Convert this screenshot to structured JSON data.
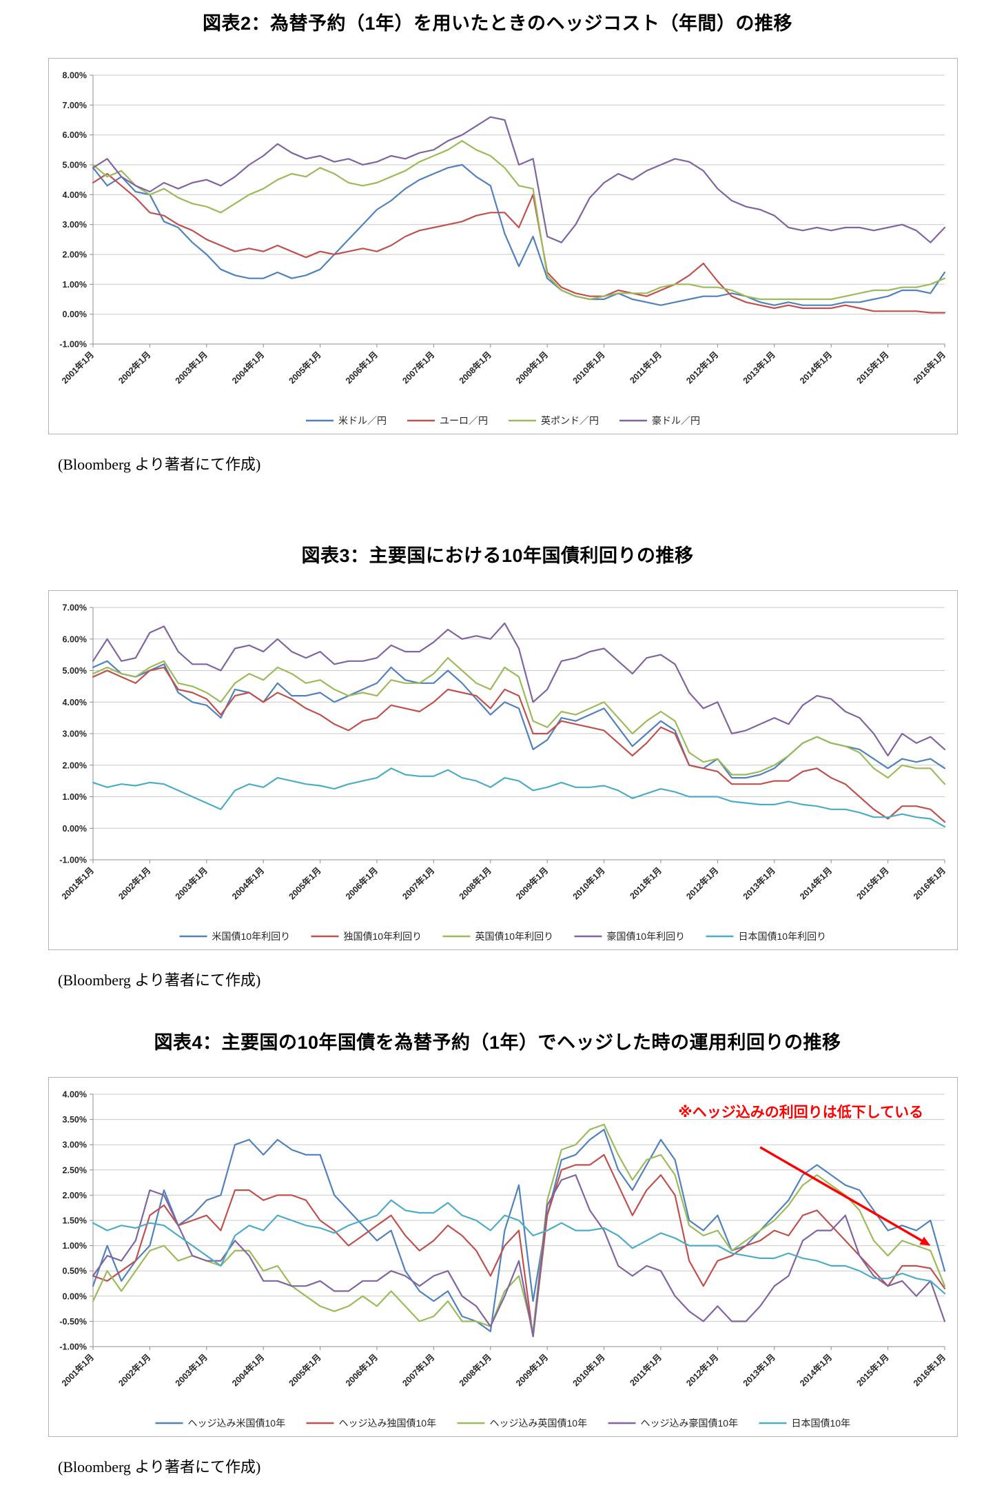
{
  "source_note": "(Bloomberg より著者にて作成)",
  "chart_data": [
    {
      "type": "line",
      "title": "図表2：為替予約（1年）を用いたときのヘッジコスト（年間）の推移",
      "x_labels": [
        "2001年1月",
        "2002年1月",
        "2003年1月",
        "2004年1月",
        "2005年1月",
        "2006年1月",
        "2007年1月",
        "2008年1月",
        "2009年1月",
        "2010年1月",
        "2011年1月",
        "2012年1月",
        "2013年1月",
        "2014年1月",
        "2015年1月",
        "2016年1月"
      ],
      "points_per_label": 4,
      "x_tick_rotation": -45,
      "ylim": [
        -1.0,
        8.0
      ],
      "ytick_step": 1.0,
      "grid": true,
      "legend_position": "bottom",
      "series": [
        {
          "name": "米ドル／円",
          "color": "#4F81BD",
          "values": [
            4.9,
            4.3,
            4.6,
            4.1,
            4.0,
            3.1,
            2.9,
            2.4,
            2.0,
            1.5,
            1.3,
            1.2,
            1.2,
            1.4,
            1.2,
            1.3,
            1.5,
            2.0,
            2.5,
            3.0,
            3.5,
            3.8,
            4.2,
            4.5,
            4.7,
            4.9,
            5.0,
            4.6,
            4.3,
            2.7,
            1.6,
            2.6,
            1.2,
            0.8,
            0.6,
            0.5,
            0.5,
            0.7,
            0.5,
            0.4,
            0.3,
            0.4,
            0.5,
            0.6,
            0.6,
            0.7,
            0.6,
            0.4,
            0.3,
            0.4,
            0.3,
            0.3,
            0.3,
            0.4,
            0.4,
            0.5,
            0.6,
            0.8,
            0.8,
            0.7,
            1.4
          ]
        },
        {
          "name": "ユーロ／円",
          "color": "#C0504D",
          "values": [
            4.4,
            4.7,
            4.3,
            3.9,
            3.4,
            3.3,
            3.0,
            2.8,
            2.5,
            2.3,
            2.1,
            2.2,
            2.1,
            2.3,
            2.1,
            1.9,
            2.1,
            2.0,
            2.1,
            2.2,
            2.1,
            2.3,
            2.6,
            2.8,
            2.9,
            3.0,
            3.1,
            3.3,
            3.4,
            3.4,
            2.9,
            4.0,
            1.4,
            0.9,
            0.7,
            0.6,
            0.6,
            0.8,
            0.7,
            0.6,
            0.8,
            1.0,
            1.3,
            1.7,
            1.1,
            0.6,
            0.4,
            0.3,
            0.2,
            0.3,
            0.2,
            0.2,
            0.2,
            0.3,
            0.2,
            0.1,
            0.1,
            0.1,
            0.1,
            0.05,
            0.05
          ]
        },
        {
          "name": "英ポンド／円",
          "color": "#9BBB59",
          "values": [
            5.0,
            4.6,
            4.8,
            4.3,
            4.0,
            4.2,
            3.9,
            3.7,
            3.6,
            3.4,
            3.7,
            4.0,
            4.2,
            4.5,
            4.7,
            4.6,
            4.9,
            4.7,
            4.4,
            4.3,
            4.4,
            4.6,
            4.8,
            5.1,
            5.3,
            5.5,
            5.8,
            5.5,
            5.3,
            4.9,
            4.3,
            4.2,
            1.3,
            0.8,
            0.6,
            0.5,
            0.6,
            0.7,
            0.7,
            0.7,
            0.9,
            1.0,
            1.0,
            0.9,
            0.9,
            0.8,
            0.6,
            0.5,
            0.5,
            0.5,
            0.5,
            0.5,
            0.5,
            0.6,
            0.7,
            0.8,
            0.8,
            0.9,
            0.9,
            1.0,
            1.2
          ]
        },
        {
          "name": "豪ドル／円",
          "color": "#8064A2",
          "values": [
            4.9,
            5.2,
            4.6,
            4.3,
            4.1,
            4.4,
            4.2,
            4.4,
            4.5,
            4.3,
            4.6,
            5.0,
            5.3,
            5.7,
            5.4,
            5.2,
            5.3,
            5.1,
            5.2,
            5.0,
            5.1,
            5.3,
            5.2,
            5.4,
            5.5,
            5.8,
            6.0,
            6.3,
            6.6,
            6.5,
            5.0,
            5.2,
            2.6,
            2.4,
            3.0,
            3.9,
            4.4,
            4.7,
            4.5,
            4.8,
            5.0,
            5.2,
            5.1,
            4.8,
            4.2,
            3.8,
            3.6,
            3.5,
            3.3,
            2.9,
            2.8,
            2.9,
            2.8,
            2.9,
            2.9,
            2.8,
            2.9,
            3.0,
            2.8,
            2.4,
            2.9
          ]
        }
      ]
    },
    {
      "type": "line",
      "title": "図表3：主要国における10年国債利回りの推移",
      "x_labels": [
        "2001年1月",
        "2002年1月",
        "2003年1月",
        "2004年1月",
        "2005年1月",
        "2006年1月",
        "2007年1月",
        "2008年1月",
        "2009年1月",
        "2010年1月",
        "2011年1月",
        "2012年1月",
        "2013年1月",
        "2014年1月",
        "2015年1月",
        "2016年1月"
      ],
      "points_per_label": 4,
      "x_tick_rotation": -45,
      "ylim": [
        -1.0,
        7.0
      ],
      "ytick_step": 1.0,
      "grid": true,
      "legend_position": "bottom",
      "series": [
        {
          "name": "米国債10年利回り",
          "color": "#4F81BD",
          "values": [
            5.1,
            5.3,
            4.9,
            4.8,
            5.0,
            5.2,
            4.3,
            4.0,
            3.9,
            3.5,
            4.4,
            4.3,
            4.0,
            4.6,
            4.2,
            4.2,
            4.3,
            4.0,
            4.2,
            4.4,
            4.6,
            5.1,
            4.7,
            4.6,
            4.6,
            5.0,
            4.6,
            4.1,
            3.6,
            4.0,
            3.8,
            2.5,
            2.8,
            3.5,
            3.4,
            3.6,
            3.8,
            3.2,
            2.6,
            3.0,
            3.4,
            3.1,
            2.0,
            1.9,
            2.2,
            1.6,
            1.6,
            1.7,
            1.9,
            2.3,
            2.7,
            2.9,
            2.7,
            2.6,
            2.5,
            2.2,
            1.9,
            2.2,
            2.1,
            2.2,
            1.9
          ]
        },
        {
          "name": "独国債10年利回り",
          "color": "#C0504D",
          "values": [
            4.8,
            5.0,
            4.8,
            4.6,
            5.0,
            5.1,
            4.4,
            4.3,
            4.1,
            3.6,
            4.2,
            4.3,
            4.0,
            4.3,
            4.1,
            3.8,
            3.6,
            3.3,
            3.1,
            3.4,
            3.5,
            3.9,
            3.8,
            3.7,
            4.0,
            4.4,
            4.3,
            4.2,
            3.8,
            4.4,
            4.2,
            3.0,
            3.0,
            3.4,
            3.3,
            3.2,
            3.1,
            2.7,
            2.3,
            2.7,
            3.2,
            3.0,
            2.0,
            1.9,
            1.8,
            1.4,
            1.4,
            1.4,
            1.5,
            1.5,
            1.8,
            1.9,
            1.6,
            1.4,
            1.0,
            0.6,
            0.3,
            0.7,
            0.7,
            0.6,
            0.2
          ]
        },
        {
          "name": "英国債10年利回り",
          "color": "#9BBB59",
          "values": [
            4.9,
            5.1,
            4.9,
            4.8,
            5.1,
            5.3,
            4.6,
            4.5,
            4.3,
            4.0,
            4.6,
            4.9,
            4.7,
            5.1,
            4.9,
            4.6,
            4.7,
            4.4,
            4.2,
            4.3,
            4.2,
            4.7,
            4.6,
            4.6,
            4.9,
            5.4,
            5.0,
            4.6,
            4.4,
            5.1,
            4.8,
            3.4,
            3.2,
            3.7,
            3.6,
            3.8,
            4.0,
            3.5,
            3.0,
            3.4,
            3.7,
            3.4,
            2.4,
            2.1,
            2.2,
            1.7,
            1.7,
            1.8,
            2.0,
            2.3,
            2.7,
            2.9,
            2.7,
            2.6,
            2.4,
            1.9,
            1.6,
            2.0,
            1.9,
            1.9,
            1.4
          ]
        },
        {
          "name": "豪国債10年利回り",
          "color": "#8064A2",
          "values": [
            5.3,
            6.0,
            5.3,
            5.4,
            6.2,
            6.4,
            5.6,
            5.2,
            5.2,
            5.0,
            5.7,
            5.8,
            5.6,
            6.0,
            5.6,
            5.4,
            5.6,
            5.2,
            5.3,
            5.3,
            5.4,
            5.8,
            5.6,
            5.6,
            5.9,
            6.3,
            6.0,
            6.1,
            6.0,
            6.5,
            5.7,
            4.0,
            4.4,
            5.3,
            5.4,
            5.6,
            5.7,
            5.3,
            4.9,
            5.4,
            5.5,
            5.2,
            4.3,
            3.8,
            4.0,
            3.0,
            3.1,
            3.3,
            3.5,
            3.3,
            3.9,
            4.2,
            4.1,
            3.7,
            3.5,
            3.0,
            2.3,
            3.0,
            2.7,
            2.9,
            2.5
          ]
        },
        {
          "name": "日本国債10年利回り",
          "color": "#4BACC6",
          "values": [
            1.45,
            1.3,
            1.4,
            1.35,
            1.45,
            1.4,
            1.2,
            1.0,
            0.8,
            0.6,
            1.2,
            1.4,
            1.3,
            1.6,
            1.5,
            1.4,
            1.35,
            1.25,
            1.4,
            1.5,
            1.6,
            1.9,
            1.7,
            1.65,
            1.65,
            1.85,
            1.6,
            1.5,
            1.3,
            1.6,
            1.5,
            1.2,
            1.3,
            1.45,
            1.3,
            1.3,
            1.35,
            1.2,
            0.95,
            1.1,
            1.25,
            1.15,
            1.0,
            1.0,
            1.0,
            0.85,
            0.8,
            0.75,
            0.75,
            0.85,
            0.75,
            0.7,
            0.6,
            0.6,
            0.5,
            0.35,
            0.35,
            0.45,
            0.35,
            0.3,
            0.05
          ]
        }
      ]
    },
    {
      "type": "line",
      "title": "図表4：主要国の10年国債を為替予約（1年）でヘッジした時の運用利回りの推移",
      "x_labels": [
        "2001年1月",
        "2002年1月",
        "2003年1月",
        "2004年1月",
        "2005年1月",
        "2006年1月",
        "2007年1月",
        "2008年1月",
        "2009年1月",
        "2010年1月",
        "2011年1月",
        "2012年1月",
        "2013年1月",
        "2014年1月",
        "2015年1月",
        "2016年1月"
      ],
      "points_per_label": 4,
      "x_tick_rotation": -45,
      "ylim": [
        -1.0,
        4.0
      ],
      "ytick_step": 0.5,
      "grid": true,
      "legend_position": "bottom",
      "annotation": {
        "text": "※ヘッジ込みの利回りは低下している",
        "color": "#FF0000",
        "anchor_x_index": 58.5,
        "y_value": 3.55
      },
      "arrow": {
        "color": "#FF0000",
        "from": [
          47,
          2.95
        ],
        "to": [
          59,
          1.0
        ]
      },
      "series": [
        {
          "name": "ヘッジ込み米国債10年",
          "color": "#4F81BD",
          "values": [
            0.2,
            1.0,
            0.3,
            0.7,
            1.0,
            2.1,
            1.4,
            1.6,
            1.9,
            2.0,
            3.0,
            3.1,
            2.8,
            3.1,
            2.9,
            2.8,
            2.8,
            2.0,
            1.7,
            1.4,
            1.1,
            1.3,
            0.5,
            0.1,
            -0.1,
            0.1,
            -0.4,
            -0.5,
            -0.7,
            1.3,
            2.2,
            -0.1,
            1.6,
            2.7,
            2.8,
            3.1,
            3.3,
            2.5,
            2.1,
            2.6,
            3.1,
            2.7,
            1.5,
            1.3,
            1.6,
            0.9,
            1.0,
            1.3,
            1.6,
            1.9,
            2.4,
            2.6,
            2.4,
            2.2,
            2.1,
            1.7,
            1.3,
            1.4,
            1.3,
            1.5,
            0.5
          ]
        },
        {
          "name": "ヘッジ込み独国債10年",
          "color": "#C0504D",
          "values": [
            0.4,
            0.3,
            0.5,
            0.7,
            1.6,
            1.8,
            1.4,
            1.5,
            1.6,
            1.3,
            2.1,
            2.1,
            1.9,
            2.0,
            2.0,
            1.9,
            1.5,
            1.3,
            1.0,
            1.2,
            1.4,
            1.6,
            1.2,
            0.9,
            1.1,
            1.4,
            1.2,
            0.9,
            0.4,
            1.0,
            1.3,
            -0.8,
            1.6,
            2.5,
            2.6,
            2.6,
            2.8,
            2.2,
            1.6,
            2.1,
            2.4,
            2.0,
            0.7,
            0.2,
            0.7,
            0.8,
            1.0,
            1.1,
            1.3,
            1.2,
            1.6,
            1.7,
            1.4,
            1.1,
            0.8,
            0.5,
            0.2,
            0.6,
            0.6,
            0.55,
            0.15
          ]
        },
        {
          "name": "ヘッジ込み英国債10年",
          "color": "#9BBB59",
          "values": [
            -0.1,
            0.5,
            0.1,
            0.5,
            0.9,
            1.0,
            0.7,
            0.8,
            0.7,
            0.6,
            0.9,
            0.9,
            0.5,
            0.6,
            0.2,
            0.0,
            -0.2,
            -0.3,
            -0.2,
            0.0,
            -0.2,
            0.1,
            -0.2,
            -0.5,
            -0.4,
            -0.1,
            -0.5,
            -0.5,
            -0.6,
            0.1,
            0.4,
            -0.7,
            1.9,
            2.9,
            3.0,
            3.3,
            3.4,
            2.8,
            2.3,
            2.7,
            2.8,
            2.4,
            1.4,
            1.2,
            1.3,
            0.9,
            1.1,
            1.3,
            1.5,
            1.8,
            2.2,
            2.4,
            2.2,
            2.0,
            1.7,
            1.1,
            0.8,
            1.1,
            1.0,
            0.9,
            0.2
          ]
        },
        {
          "name": "ヘッジ込み豪国債10年",
          "color": "#8064A2",
          "values": [
            0.4,
            0.8,
            0.7,
            1.1,
            2.1,
            2.0,
            1.4,
            0.8,
            0.7,
            0.7,
            1.1,
            0.8,
            0.3,
            0.3,
            0.2,
            0.2,
            0.3,
            0.1,
            0.1,
            0.3,
            0.3,
            0.5,
            0.4,
            0.2,
            0.4,
            0.5,
            0.0,
            -0.2,
            -0.6,
            0.0,
            0.7,
            -0.8,
            1.8,
            2.3,
            2.4,
            1.7,
            1.3,
            0.6,
            0.4,
            0.6,
            0.5,
            0.0,
            -0.3,
            -0.5,
            -0.2,
            -0.5,
            -0.5,
            -0.2,
            0.2,
            0.4,
            1.1,
            1.3,
            1.3,
            1.6,
            0.8,
            0.4,
            0.2,
            0.3,
            0.0,
            0.3,
            -0.5
          ]
        },
        {
          "name": "日本国債10年",
          "color": "#4BACC6",
          "values": [
            1.45,
            1.3,
            1.4,
            1.35,
            1.45,
            1.4,
            1.2,
            1.0,
            0.8,
            0.6,
            1.2,
            1.4,
            1.3,
            1.6,
            1.5,
            1.4,
            1.35,
            1.25,
            1.4,
            1.5,
            1.6,
            1.9,
            1.7,
            1.65,
            1.65,
            1.85,
            1.6,
            1.5,
            1.3,
            1.6,
            1.5,
            1.2,
            1.3,
            1.45,
            1.3,
            1.3,
            1.35,
            1.2,
            0.95,
            1.1,
            1.25,
            1.15,
            1.0,
            1.0,
            1.0,
            0.85,
            0.8,
            0.75,
            0.75,
            0.85,
            0.75,
            0.7,
            0.6,
            0.6,
            0.5,
            0.35,
            0.35,
            0.45,
            0.35,
            0.3,
            0.05
          ]
        }
      ]
    }
  ]
}
